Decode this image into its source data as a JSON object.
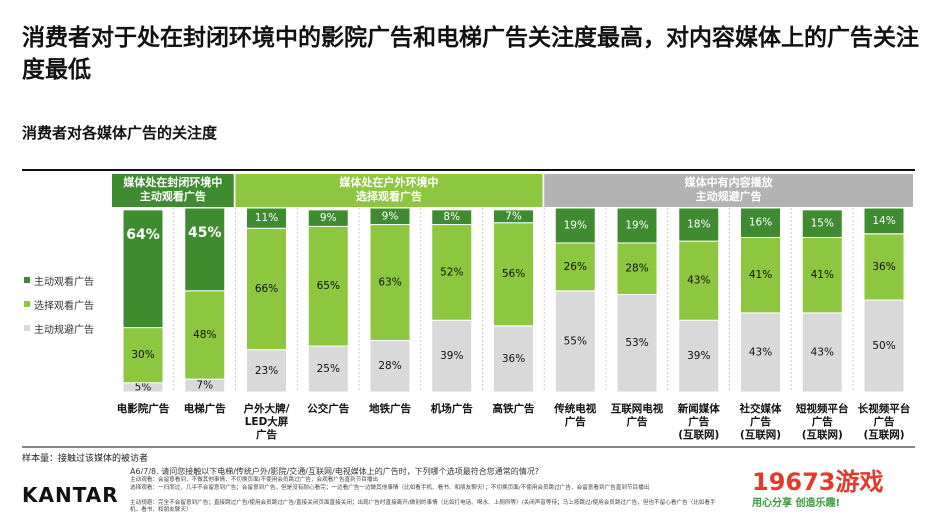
{
  "title": "消费者对于处在封闭环境中的影院广告和电梯广告关注度最高，对内容媒体上的广告关注度最低",
  "chart_data": {
    "type": "bar",
    "stacked": true,
    "subtitle": "消费者对各媒体广告的关注度",
    "groups": [
      {
        "label": "媒体处在封闭环境中\n主动观看广告",
        "color": "#3e8c2f"
      },
      {
        "label": "媒体处在户外环境中\n选择观看广告",
        "color": "#8dc63f"
      },
      {
        "label": "媒体中有内容播放\n主动规避广告",
        "color": "#b3b3b3"
      }
    ],
    "categories": [
      "电影院广告",
      "电梯广告",
      "户外大牌/\nLED大屏\n广告",
      "公交广告",
      "地铁广告",
      "机场广告",
      "高铁广告",
      "传统电视\n广告",
      "互联网电视\n广告",
      "新闻媒体\n广告\n(互联网)",
      "社交媒体\n广告\n(互联网)",
      "短视频平台\n广告\n(互联网)",
      "长视频平台\n广告\n(互联网)"
    ],
    "series": [
      {
        "name": "主动规避广告",
        "color": "#d9d9d9",
        "values": [
          5,
          7,
          23,
          25,
          28,
          39,
          36,
          55,
          53,
          39,
          43,
          43,
          50
        ],
        "value_labels": [
          "5%",
          "7%",
          "23%",
          "25%",
          "28%",
          "39%",
          "36%",
          "55%",
          "53%",
          "39%",
          "43%",
          "43%",
          "50%"
        ]
      },
      {
        "name": "选择观看广告",
        "color": "#8dc63f",
        "values": [
          30,
          48,
          66,
          65,
          63,
          52,
          56,
          26,
          28,
          43,
          41,
          41,
          36
        ],
        "value_labels": [
          "30%",
          "48%",
          "66%",
          "65%",
          "63%",
          "52%",
          "56%",
          "26%",
          "28%",
          "43%",
          "41%",
          "41%",
          "36%"
        ]
      },
      {
        "name": "主动观看广告",
        "color": "#3e8c2f",
        "values": [
          64,
          45,
          11,
          9,
          9,
          8,
          7,
          19,
          19,
          18,
          16,
          15,
          14
        ],
        "value_labels": [
          "64%",
          "45%",
          "11%",
          "9%",
          "9%",
          "8%",
          "7%",
          "19%",
          "19%",
          "18%",
          "16%",
          "15%",
          "14%"
        ]
      }
    ],
    "ylim": [
      0,
      100
    ],
    "legend": "left"
  },
  "footnote": "样本量：接触过该媒体的被访者",
  "question": "A6/7/8. 请问您接触以下电梯/传统户外/影院/交通/互联网/电视媒体上的广告时，下列哪个选项最符合您通常的情况?",
  "definitions": [
    "主动观看：会留意看到，不做其他事情，不切换页面/不使用会员跳过广告，会观看广告直到节目播出",
    "选择观看：一扫而过，几乎不会留意到广告；会留意到广告，但是没有耐心看完；一边看广告一边做其他事情（比如看手机、看书、和朋友聊天）；不切换页面/不使用会员跳过广告，会留意看到广告直到节目播出",
    "主动规避：完全不会留意到广告；直接跳过广告/使用会员跳过广告/直接关闭页面直接关闭；出现广告时直接离开/做别的事情（比如打电话、喝水、上厕所等）/关闭声音等待；马上按跳过/使用会员跳过广告，但也不留心看广告（比如看手机、看书、和朋友聊天）"
  ],
  "brand": "KANTAR",
  "watermark": {
    "name": "19673游戏",
    "slogan": "用心分享 创造乐趣!"
  }
}
